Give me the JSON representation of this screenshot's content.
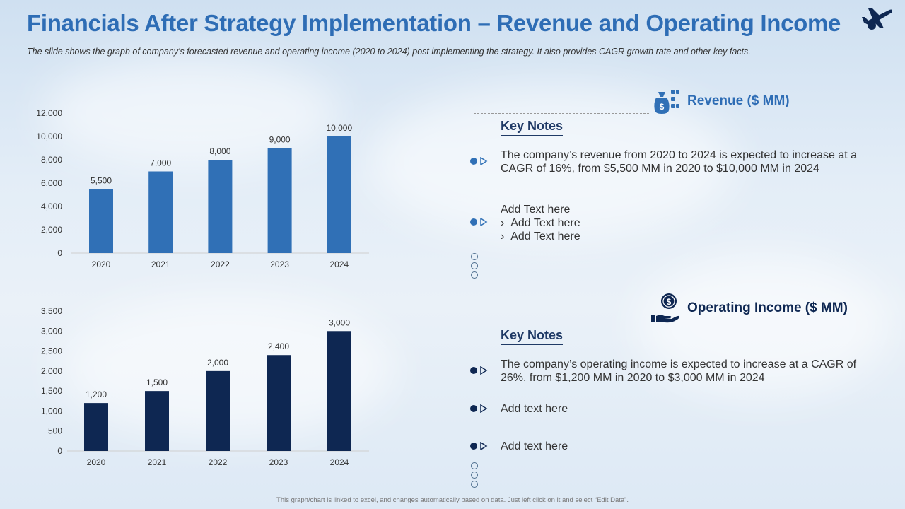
{
  "header": {
    "title": "Financials After Strategy Implementation – Revenue and Operating Income",
    "subtitle": "The slide shows the graph of company’s forecasted revenue and operating income (2020 to 2024) post implementing the strategy. It also provides CAGR growth rate and other key facts."
  },
  "colors": {
    "title": "#2e6db5",
    "revenue": "#3070b6",
    "operating": "#0e2752"
  },
  "icons": {
    "plane": "airplane-icon",
    "revenue": "money-bag-icon",
    "operating": "coin-hand-icon"
  },
  "chart_data": [
    {
      "type": "bar",
      "title": "Revenue ($ MM)",
      "categories": [
        "2020",
        "2021",
        "2022",
        "2023",
        "2024"
      ],
      "values": [
        5500,
        7000,
        8000,
        9000,
        10000
      ],
      "value_labels": [
        "5,500",
        "7,000",
        "8,000",
        "9,000",
        "10,000"
      ],
      "ylim": [
        0,
        12000
      ],
      "yticks": [
        "0",
        "2,000",
        "4,000",
        "6,000",
        "8,000",
        "10,000",
        "12,000"
      ],
      "color": "#3070b6",
      "xlabel": "",
      "ylabel": "",
      "grid": false
    },
    {
      "type": "bar",
      "title": "Operating Income ($ MM)",
      "categories": [
        "2020",
        "2021",
        "2022",
        "2023",
        "2024"
      ],
      "values": [
        1200,
        1500,
        2000,
        2400,
        3000
      ],
      "value_labels": [
        "1,200",
        "1,500",
        "2,000",
        "2,400",
        "3,000"
      ],
      "ylim": [
        0,
        3500
      ],
      "yticks": [
        "0",
        "500",
        "1,000",
        "1,500",
        "2,000",
        "2,500",
        "3,000",
        "3,500"
      ],
      "color": "#0e2752",
      "xlabel": "",
      "ylabel": "",
      "grid": false
    }
  ],
  "revenue_panel": {
    "heading": "Revenue ($ MM)",
    "key_notes": "Key Notes",
    "note1": "The company’s revenue from 2020 to 2024 is expected to increase at a CAGR of 16%, from $5,500 MM in 2020 to $10,000 MM in 2024",
    "note2": "Add Text here",
    "sub1": "Add Text here",
    "sub2": "Add Text here",
    "sub_marker": "›"
  },
  "operating_panel": {
    "heading": "Operating Income ($ MM)",
    "key_notes": "Key Notes",
    "note1": "The company’s operating income is expected to increase at a CAGR of 26%, from $1,200 MM in 2020 to $3,000 MM in 2024",
    "note2": "Add text here",
    "note3": "Add text here"
  },
  "footer": "This graph/chart is linked to excel, and changes automatically based on data. Just left click on it and select “Edit Data”."
}
